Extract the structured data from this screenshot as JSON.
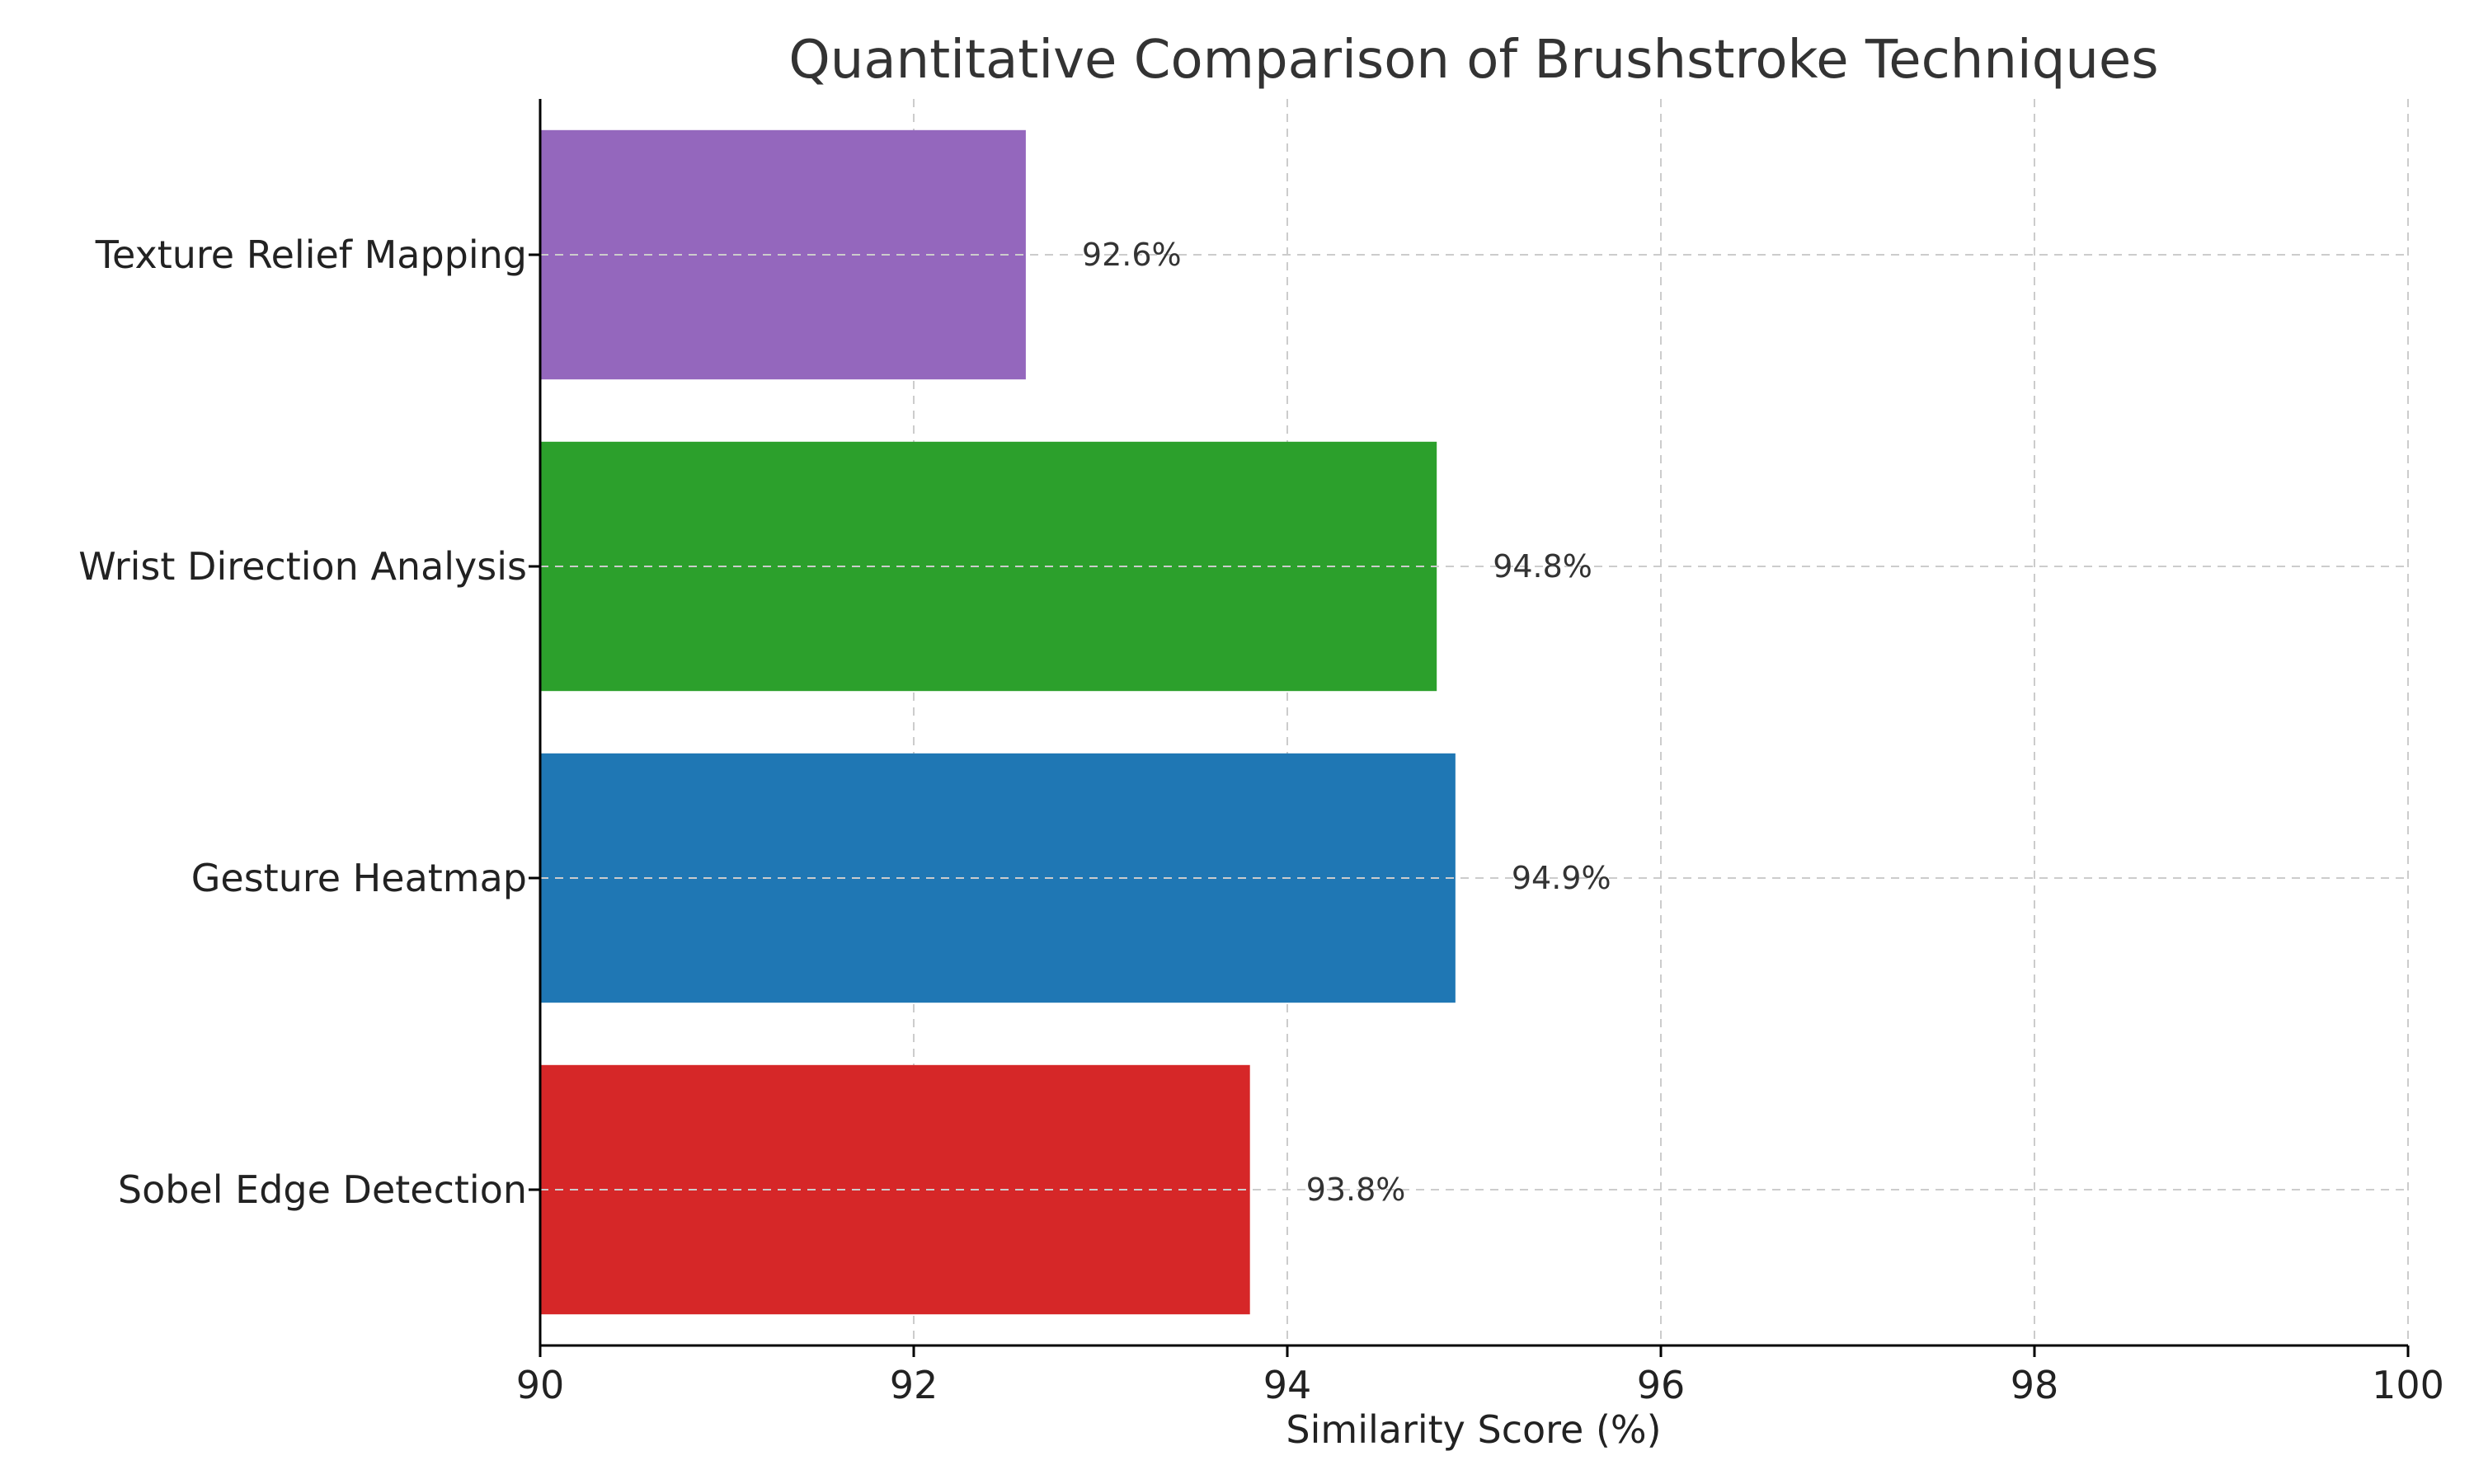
{
  "chart_data": {
    "type": "bar",
    "orientation": "horizontal",
    "title": "Quantitative Comparison of Brushstroke Techniques",
    "xlabel": "Similarity Score (%)",
    "ylabel": "",
    "xlim": [
      90,
      100
    ],
    "xticks": [
      90,
      92,
      94,
      96,
      98,
      100
    ],
    "categories": [
      "Sobel Edge Detection",
      "Gesture Heatmap",
      "Wrist Direction Analysis",
      "Texture Relief Mapping"
    ],
    "values": [
      93.8,
      94.9,
      94.8,
      92.6
    ],
    "data_labels": [
      "93.8%",
      "94.9%",
      "94.8%",
      "92.6%"
    ],
    "colors": [
      "#d62728",
      "#1f77b4",
      "#2ca02c",
      "#9467bd"
    ],
    "grid": true,
    "legend": "none"
  }
}
